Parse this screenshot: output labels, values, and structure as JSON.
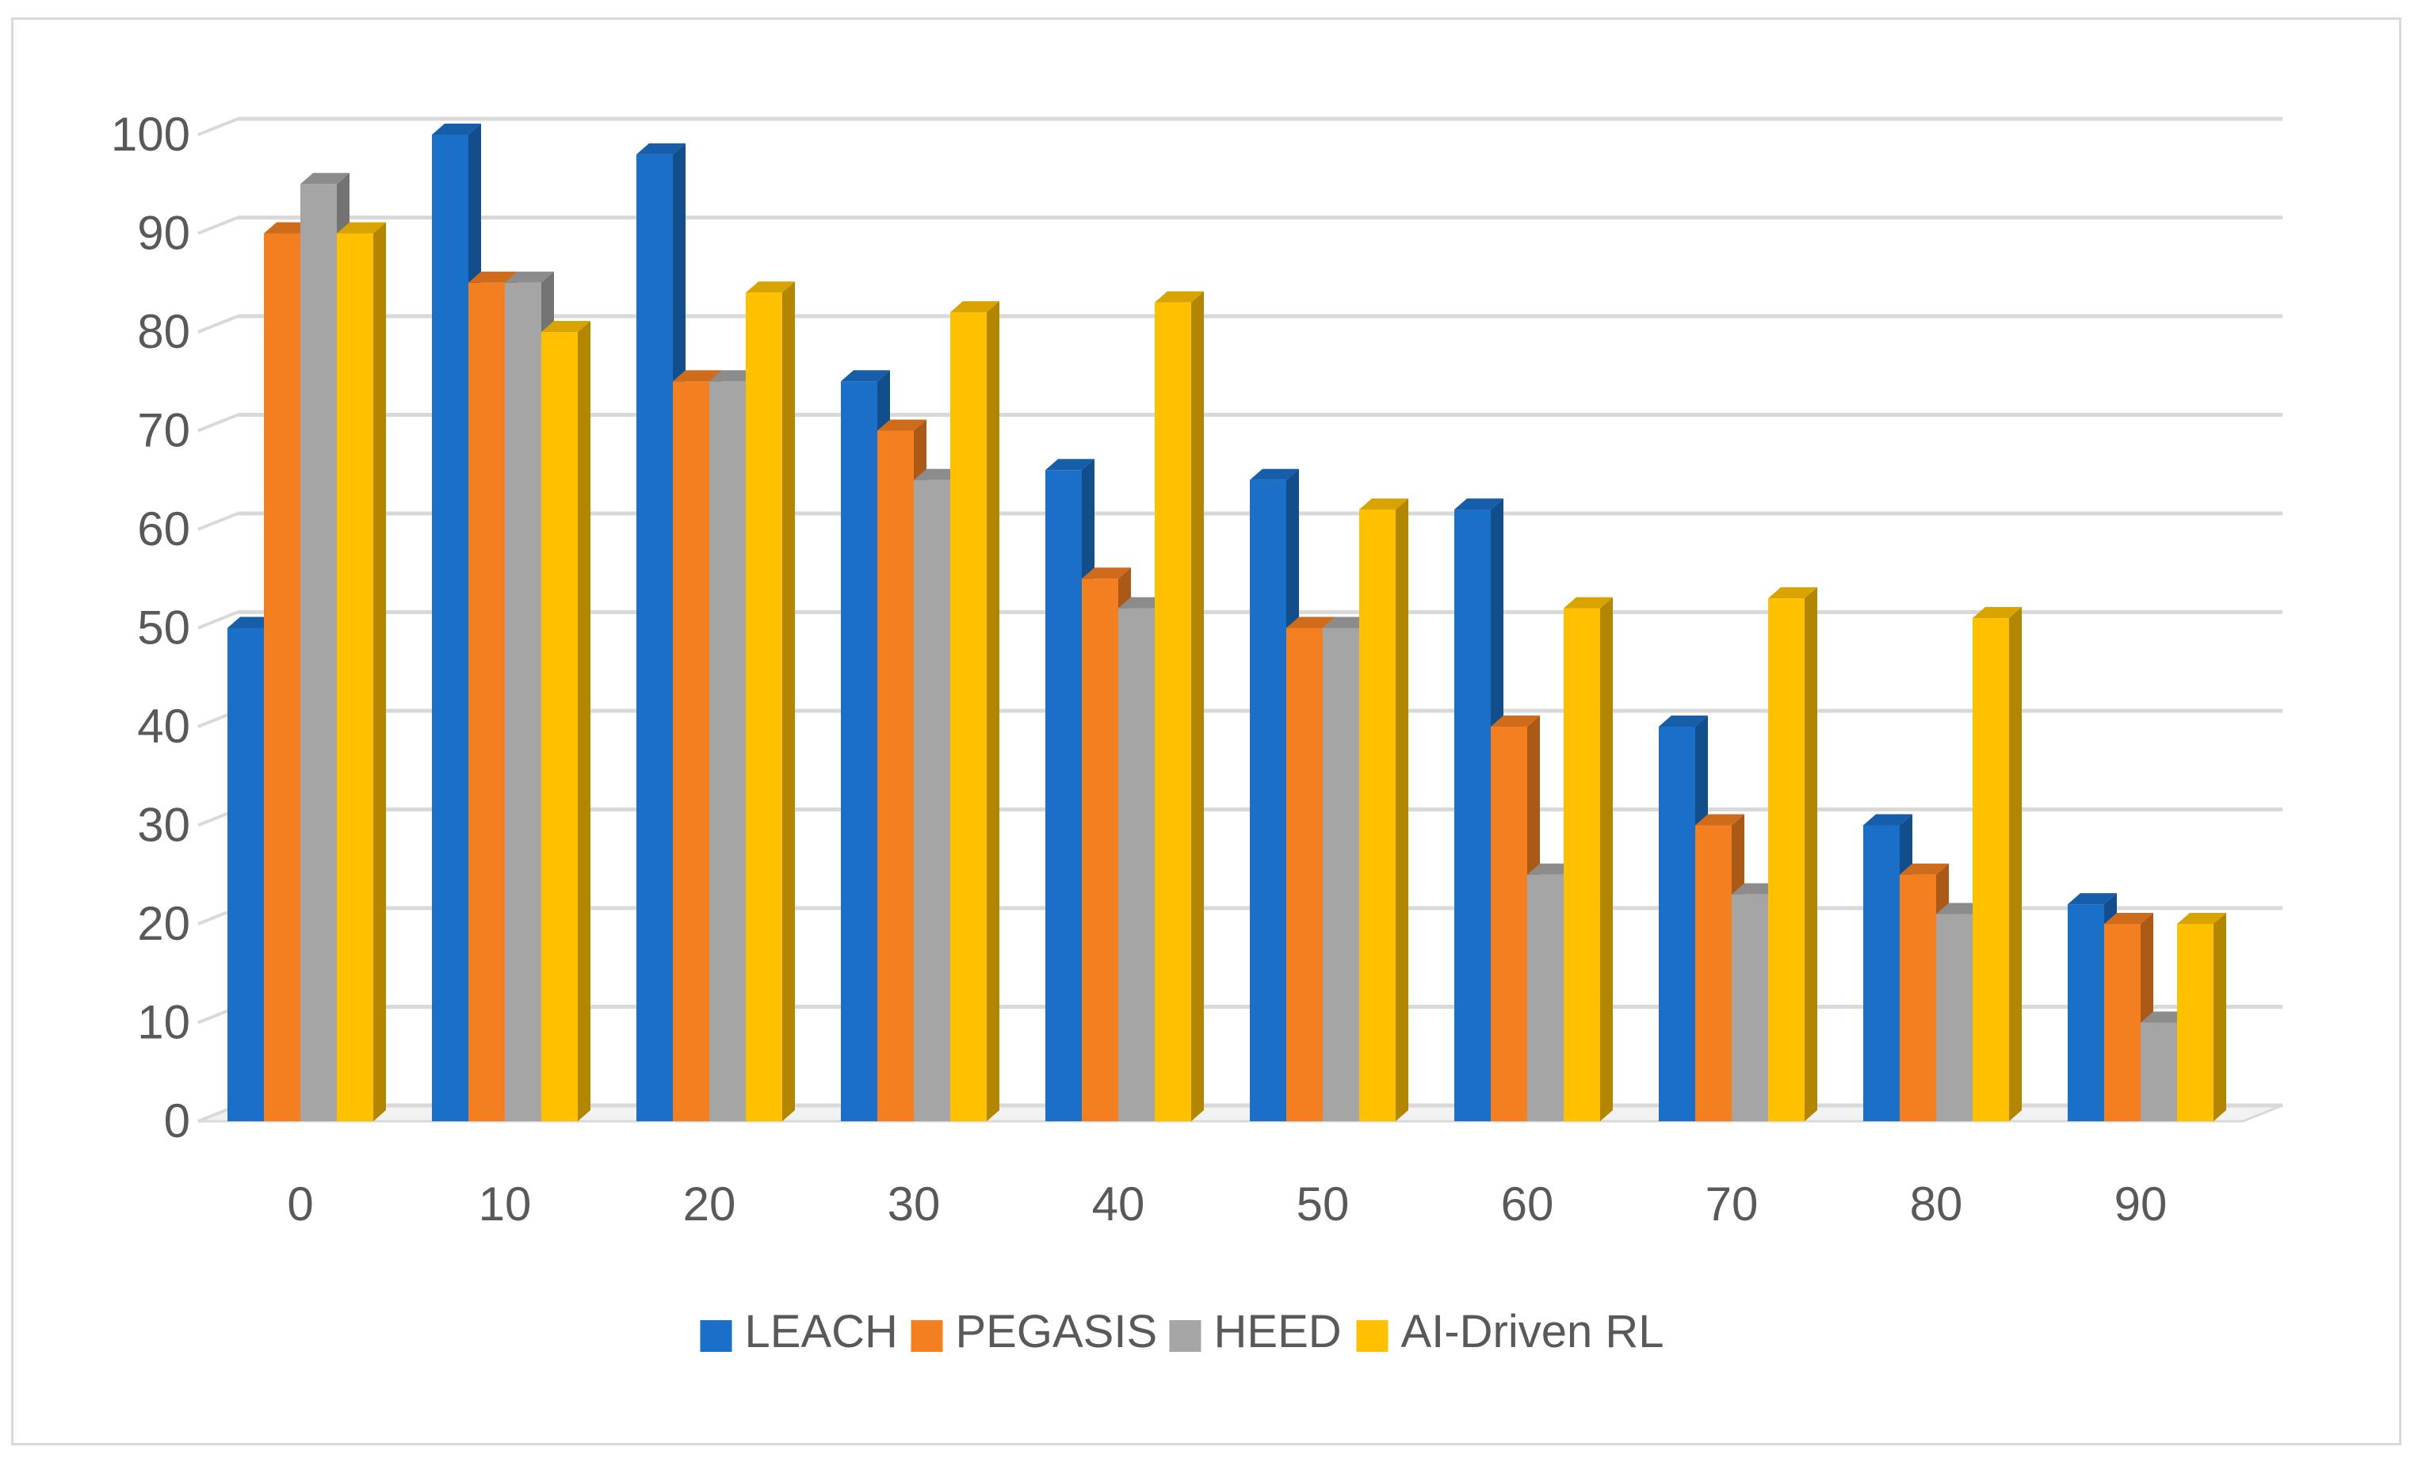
{
  "chart_data": {
    "type": "bar",
    "style": "3d-clustered-column",
    "title": "",
    "xlabel": "",
    "ylabel": "",
    "categories": [
      "0",
      "10",
      "20",
      "30",
      "40",
      "50",
      "60",
      "70",
      "80",
      "90"
    ],
    "ylim": [
      0,
      100
    ],
    "yticks": [
      "0",
      "10",
      "20",
      "30",
      "40",
      "50",
      "60",
      "70",
      "80",
      "90",
      "100"
    ],
    "grid": "horizontal",
    "legend_position": "bottom",
    "series": [
      {
        "name": "LEACH",
        "color": "#1a6fc8",
        "values": [
          50,
          100,
          98,
          75,
          66,
          65,
          62,
          40,
          30,
          22
        ]
      },
      {
        "name": "PEGASIS",
        "color": "#f47f20",
        "values": [
          90,
          85,
          75,
          70,
          55,
          50,
          40,
          30,
          25,
          20
        ]
      },
      {
        "name": "HEED",
        "color": "#a5a5a5",
        "values": [
          95,
          85,
          75,
          65,
          52,
          50,
          25,
          23,
          21,
          10
        ]
      },
      {
        "name": "AI-Driven RL",
        "color": "#ffc000",
        "values": [
          90,
          80,
          84,
          82,
          83,
          62,
          52,
          53,
          51,
          20
        ]
      }
    ]
  }
}
